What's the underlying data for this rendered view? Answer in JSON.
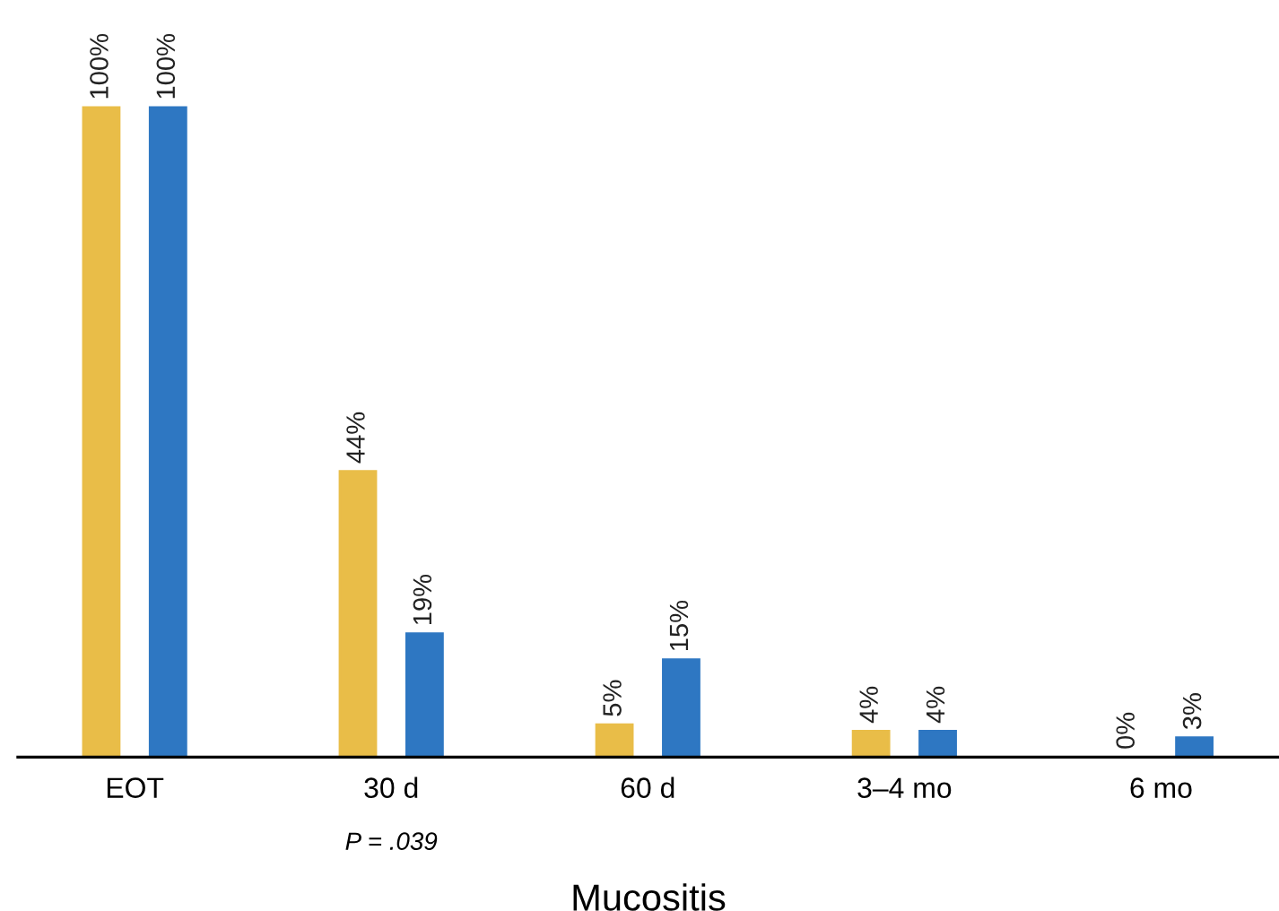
{
  "chart_data": {
    "type": "bar",
    "xlabel": "Mucositis",
    "categories": [
      "EOT",
      "30 d",
      "60 d",
      "3–4 mo",
      "6 mo"
    ],
    "series": [
      {
        "color": "#e9bd48",
        "values": [
          100,
          44,
          5,
          4,
          0
        ],
        "value_labels": [
          "100%",
          "44%",
          "5%",
          "4%",
          "0%"
        ]
      },
      {
        "color": "#2e77c2",
        "values": [
          100,
          19,
          15,
          4,
          3
        ],
        "value_labels": [
          "100%",
          "19%",
          "15%",
          "4%",
          "3%"
        ]
      }
    ],
    "annotations": [
      "P = .039"
    ]
  }
}
